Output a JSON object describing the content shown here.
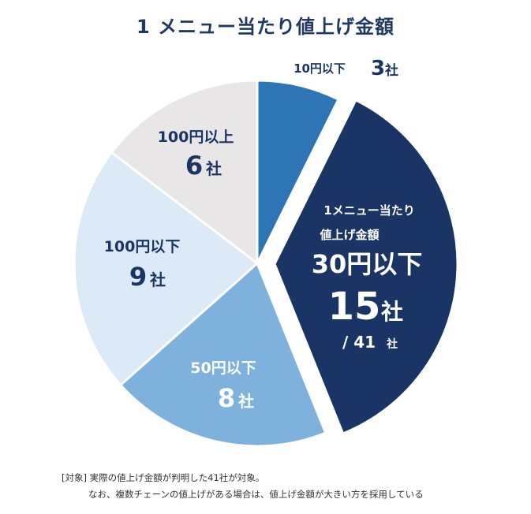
{
  "chart_data": {
    "type": "pie",
    "title": "1 メニュー当たり値上げ金額",
    "total": 41,
    "unit": "社",
    "slices": [
      {
        "label": "10円以下",
        "value": 3,
        "value_text": "3",
        "color": "#2e75b6"
      },
      {
        "label": "30円以下",
        "value": 15,
        "value_text": "15",
        "color": "#1b3466",
        "exploded": true,
        "head1": "1メニュー当たり",
        "head2": "値上げ金額",
        "total_text": "/ 41"
      },
      {
        "label": "50円以下",
        "value": 8,
        "value_text": "8",
        "color": "#7eb2dc"
      },
      {
        "label": "100円以下",
        "value": 9,
        "value_text": "9",
        "color": "#dce9f7"
      },
      {
        "label": "100円以上",
        "value": 6,
        "value_text": "6",
        "color": "#e8e6e6"
      }
    ],
    "notes": [
      "[対象] 実際の値上げ金額が判明した41社が対象。",
      "なお、複数チェーンの値上げがある場合は、値上げ金額が大きい方を採用している"
    ]
  }
}
